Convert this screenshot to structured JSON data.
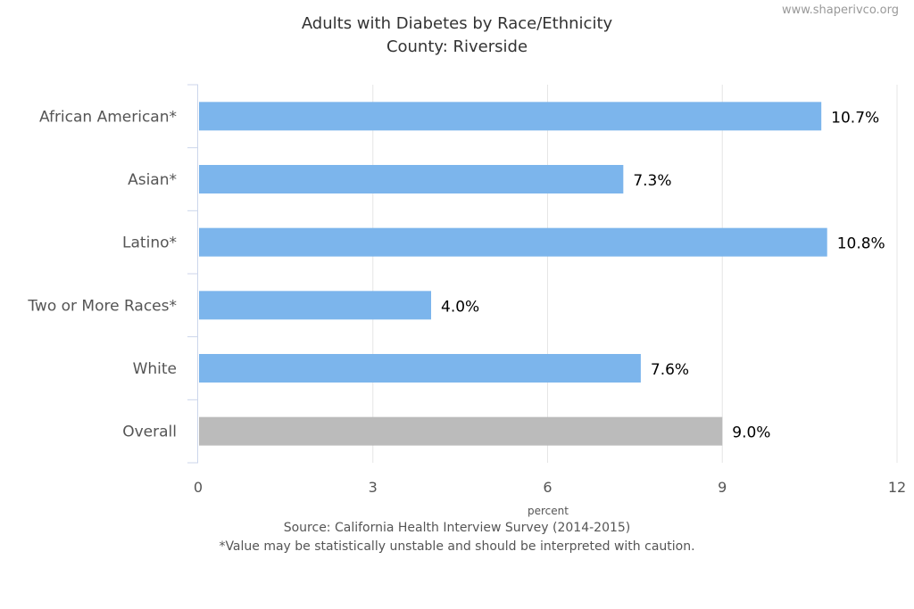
{
  "credit": "www.shaperivco.org",
  "chart_data": {
    "type": "bar",
    "orientation": "horizontal",
    "title": "Adults with Diabetes by Race/Ethnicity",
    "subtitle": "County: Riverside",
    "categories": [
      "African American*",
      "Asian*",
      "Latino*",
      "Two or More Races*",
      "White",
      "Overall"
    ],
    "values": [
      10.7,
      7.3,
      10.8,
      4.0,
      7.6,
      9.0
    ],
    "data_labels": [
      "10.7%",
      "7.3%",
      "10.8%",
      "4.0%",
      "7.6%",
      "9.0%"
    ],
    "xlabel": "percent",
    "xlim": [
      0,
      12
    ],
    "xticks": [
      0,
      3,
      6,
      9,
      12
    ],
    "grid": true,
    "legend": "none",
    "colors": {
      "bar": "#7cb5ec",
      "overall": "#bbbbbb",
      "grid": "#e6e6e6",
      "axis": "#ccd6eb"
    },
    "notes": [
      "Source: California Health Interview Survey (2014-2015)",
      "*Value may be statistically unstable and should be interpreted with caution."
    ]
  }
}
